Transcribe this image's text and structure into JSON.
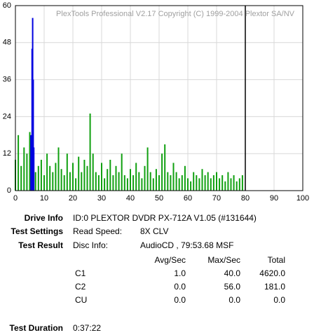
{
  "chart_data": {
    "type": "bar",
    "title": "PlexTools Professional V2.17 Copyright (C) 1999-2004 Plextor SA/NV",
    "xlim": [
      0,
      100
    ],
    "xticks": [
      0,
      10,
      20,
      30,
      40,
      50,
      60,
      70,
      80,
      90,
      100
    ],
    "ylim": [
      0,
      60
    ],
    "yticks": [
      0,
      12,
      24,
      36,
      48,
      60
    ],
    "grid": true,
    "vlines": [
      80
    ],
    "series": [
      {
        "name": "C1",
        "color": "#10a010",
        "x": [
          0,
          1,
          2,
          3,
          4,
          5,
          6,
          7,
          8,
          9,
          10,
          11,
          12,
          13,
          14,
          15,
          16,
          17,
          18,
          19,
          20,
          21,
          22,
          23,
          24,
          25,
          26,
          27,
          28,
          29,
          30,
          31,
          32,
          33,
          34,
          35,
          36,
          37,
          38,
          39,
          40,
          41,
          42,
          43,
          44,
          45,
          46,
          47,
          48,
          49,
          50,
          51,
          52,
          53,
          54,
          55,
          56,
          57,
          58,
          59,
          60,
          61,
          62,
          63,
          64,
          65,
          66,
          67,
          68,
          69,
          70,
          71,
          72,
          73,
          74,
          75,
          76,
          77,
          78,
          79
        ],
        "values": [
          10,
          18,
          8,
          14,
          12,
          19,
          15,
          6,
          8,
          10,
          5,
          12,
          8,
          6,
          9,
          14,
          7,
          5,
          12,
          6,
          9,
          4,
          11,
          6,
          10,
          8,
          25,
          12,
          6,
          5,
          9,
          4,
          7,
          10,
          5,
          8,
          6,
          12,
          5,
          4,
          7,
          5,
          9,
          6,
          4,
          8,
          14,
          6,
          4,
          7,
          5,
          12,
          15,
          6,
          5,
          9,
          6,
          4,
          5,
          8,
          4,
          3,
          6,
          5,
          4,
          7,
          5,
          6,
          4,
          5,
          6,
          4,
          5,
          3,
          6,
          4,
          5,
          3,
          4,
          5
        ]
      },
      {
        "name": "C2",
        "color": "#0000e0",
        "x": [
          5.4,
          5.6,
          5.8,
          6.0,
          6.2,
          6.4
        ],
        "values": [
          18,
          10,
          46,
          56,
          36,
          14
        ]
      }
    ]
  },
  "info": {
    "drive_label": "Drive Info",
    "drive": "ID:0 PLEXTOR DVDR PX-712A V1.05 (#131644)",
    "settings_label": "Test Settings",
    "speed_label": "Read Speed:",
    "speed": "8X CLV",
    "result_label": "Test Result",
    "disc_label": "Disc Info:",
    "disc": "AudioCD , 79:53.68 MSF",
    "columns": [
      "Avg/Sec",
      "Max/Sec",
      "Total"
    ],
    "rows": [
      [
        "C1",
        "1.0",
        "40.0",
        "4620.0"
      ],
      [
        "C2",
        "0.0",
        "56.0",
        "181.0"
      ],
      [
        "CU",
        "0.0",
        "0.0",
        "0.0"
      ]
    ],
    "duration_label": "Test Duration",
    "duration": "0:37:22"
  }
}
